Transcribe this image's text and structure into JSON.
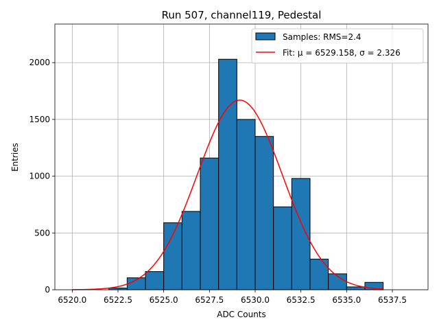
{
  "chart_data": {
    "type": "bar",
    "title": "Run 507, channel119, Pedestal",
    "xlabel": "ADC Counts",
    "ylabel": "Entries",
    "xlim": [
      6519.05,
      6539.45
    ],
    "ylim": [
      0,
      2340
    ],
    "grid": true,
    "legend_placement": "top-right",
    "x_ticks": [
      6520.0,
      6522.5,
      6525.0,
      6527.5,
      6530.0,
      6532.5,
      6535.0,
      6537.5
    ],
    "x_tick_labels": [
      "6520.0",
      "6522.5",
      "6525.0",
      "6527.5",
      "6530.0",
      "6532.5",
      "6535.0",
      "6537.5"
    ],
    "y_ticks": [
      0,
      500,
      1000,
      1500,
      2000
    ],
    "y_tick_labels": [
      "0",
      "500",
      "1000",
      "1500",
      "2000"
    ],
    "histogram": {
      "name": "Samples: RMS=2.4",
      "bin_edges": [
        6522,
        6523,
        6524,
        6525,
        6526,
        6527,
        6528,
        6529,
        6530,
        6531,
        6532,
        6533,
        6534,
        6535,
        6536,
        6537
      ],
      "counts": [
        15,
        105,
        160,
        590,
        690,
        1160,
        2030,
        1500,
        1350,
        730,
        980,
        270,
        140,
        25,
        65
      ],
      "color": "#1f77b4",
      "edge_color": "#000000"
    },
    "fit": {
      "name": "Fit: μ = 6529.158, σ = 2.326",
      "mu": 6529.158,
      "sigma": 2.326,
      "amplitude": 1670,
      "x_range": [
        6520,
        6537
      ],
      "color": "#ff0000"
    }
  }
}
